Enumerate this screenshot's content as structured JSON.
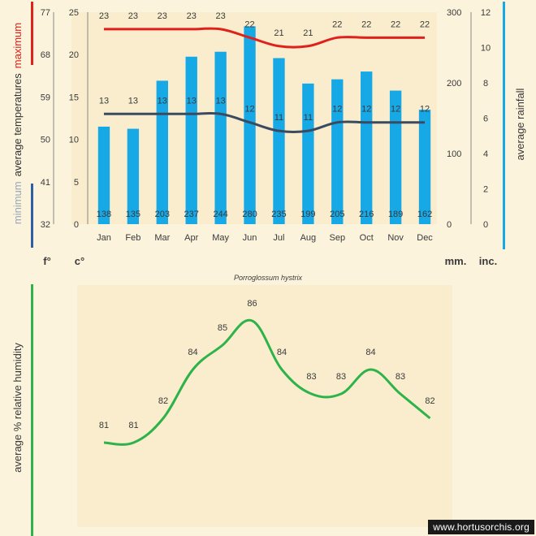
{
  "chart_data": [
    {
      "type": "bar",
      "title": "",
      "subtitle": "Porroglossum hystrix",
      "categories": [
        "Jan",
        "Feb",
        "Mar",
        "Apr",
        "May",
        "Jun",
        "Jul",
        "Aug",
        "Sep",
        "Oct",
        "Nov",
        "Dec"
      ],
      "bar_series": {
        "name": "average rainfall",
        "unit": "mm.",
        "values": [
          138,
          135,
          203,
          237,
          244,
          280,
          235,
          199,
          205,
          216,
          189,
          162
        ],
        "color": "#17a8e6"
      },
      "line_series": [
        {
          "name": "maximum",
          "unit": "c°",
          "values": [
            23,
            23,
            23,
            23,
            23,
            22,
            21,
            21,
            22,
            22,
            22,
            22
          ],
          "color": "#e0201b"
        },
        {
          "name": "minimum",
          "unit": "c°",
          "values": [
            13,
            13,
            13,
            13,
            13,
            12,
            11,
            11,
            12,
            12,
            12,
            12
          ],
          "color": "#3b4a5e"
        }
      ],
      "y_left_celsius": {
        "unit": "c°",
        "ticks": [
          0,
          5,
          10,
          15,
          20,
          25
        ],
        "range": [
          0,
          25
        ]
      },
      "y_left_fahrenheit": {
        "unit": "f°",
        "ticks": [
          32,
          41,
          50,
          59,
          68,
          77
        ]
      },
      "y_right_mm": {
        "unit": "mm.",
        "ticks": [
          0,
          100,
          200,
          300
        ],
        "range": [
          0,
          300
        ]
      },
      "y_right_inches": {
        "unit": "inc.",
        "ticks": [
          0,
          2,
          4,
          6,
          8,
          10,
          12
        ]
      },
      "left_axis_label": {
        "part1": "minimum",
        "part2": "average temperatures",
        "part3": "maximum"
      },
      "right_axis_label": "average rainfall",
      "colors": {
        "min_bar": "#2e5fa6",
        "max_bar": "#e0201b",
        "rain_bar": "#17a8e6"
      }
    },
    {
      "type": "line",
      "title": "",
      "categories": [
        "Jan",
        "Feb",
        "Mar",
        "Apr",
        "May",
        "Jun",
        "Jul",
        "Aug",
        "Sep",
        "Oct",
        "Nov",
        "Dec"
      ],
      "series": [
        {
          "name": "average % relative humidity",
          "values": [
            81,
            81,
            82,
            84,
            85,
            86,
            84,
            83,
            83,
            84,
            83,
            82
          ],
          "color": "#2db34a"
        }
      ],
      "ylabel": "average %  relative humidity",
      "colors": {
        "line": "#2db34a",
        "axis_bar": "#2db34a"
      }
    }
  ],
  "watermark": "www.hortusorchis.org"
}
